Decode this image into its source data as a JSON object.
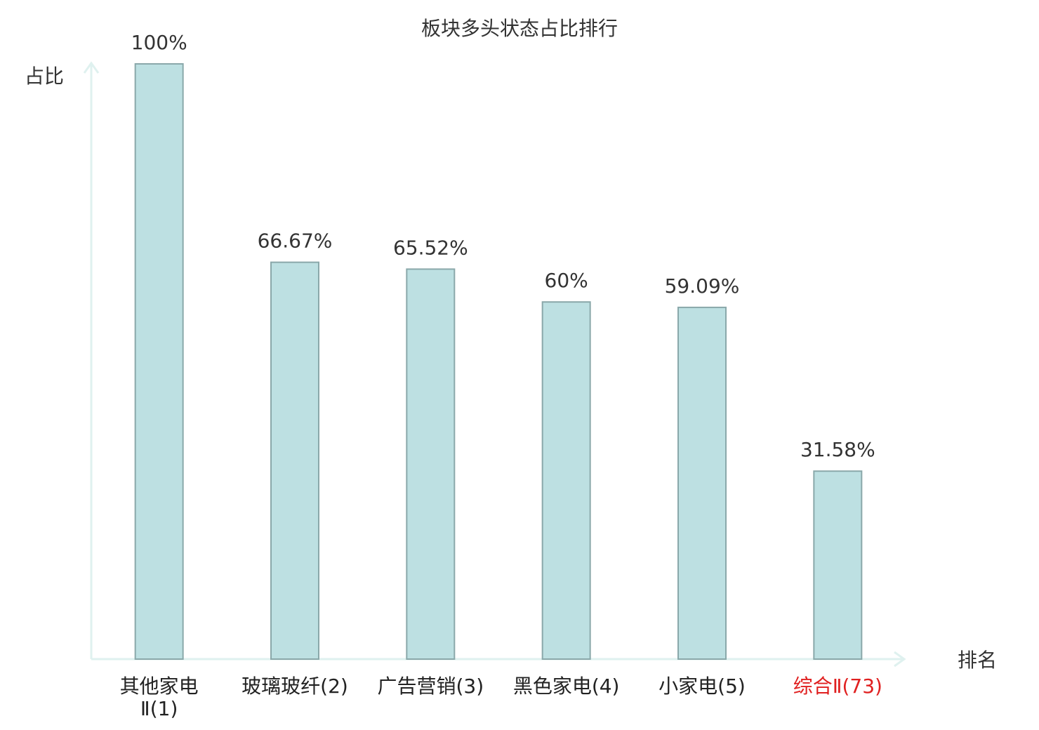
{
  "chart_data": {
    "type": "bar",
    "title": "板块多头状态占比排行",
    "y_label": "占比",
    "x_label": "排名",
    "categories": [
      "其他家电Ⅱ(1)",
      "玻璃玻纤(2)",
      "广告营销(3)",
      "黑色家电(4)",
      "小家电(5)",
      "综合Ⅱ(73)"
    ],
    "category_colors": [
      "#222222",
      "#222222",
      "#222222",
      "#222222",
      "#222222",
      "#e02020"
    ],
    "values": [
      100,
      66.67,
      65.52,
      60,
      59.09,
      31.58
    ],
    "value_labels": [
      "100%",
      "66.67%",
      "65.52%",
      "60%",
      "59.09%",
      "31.58%"
    ],
    "color": "#bde0e2",
    "edge_color": "#8aa8aa",
    "ylim": [
      0,
      100
    ]
  }
}
